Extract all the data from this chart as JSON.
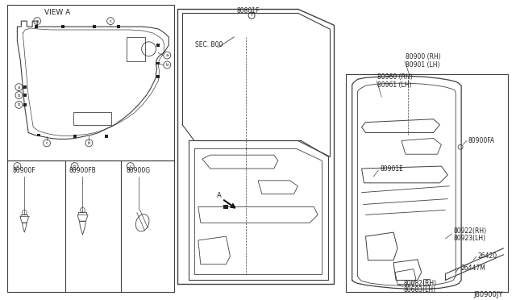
{
  "bg_color": "#ffffff",
  "line_color": "#404040",
  "text_color": "#222222",
  "labels": {
    "view_a": "VIEW A",
    "sec_b00": "SEC. B00",
    "part_80801F": "80801F",
    "part_80900_RH": "80900 (RH)",
    "part_80901_LH": "80901 (LH)",
    "part_80960_RH": "80960 (RH)",
    "part_80961_LH": "80961 (LH)",
    "part_80900FA": "80900FA",
    "part_80901E": "80901E",
    "part_80922_RH": "80922(RH)",
    "part_80923_LH": "80923(LH)",
    "part_26420": "26420",
    "part_26447M": "26447M",
    "part_80682_RH": "80682(RH)",
    "part_80683_LH": "80683(LH)",
    "part_80900F": "80900F",
    "part_80900FB": "80900FB",
    "part_80900G": "80900G",
    "diagram_id": "J80900JY",
    "arrow_a": "A"
  }
}
